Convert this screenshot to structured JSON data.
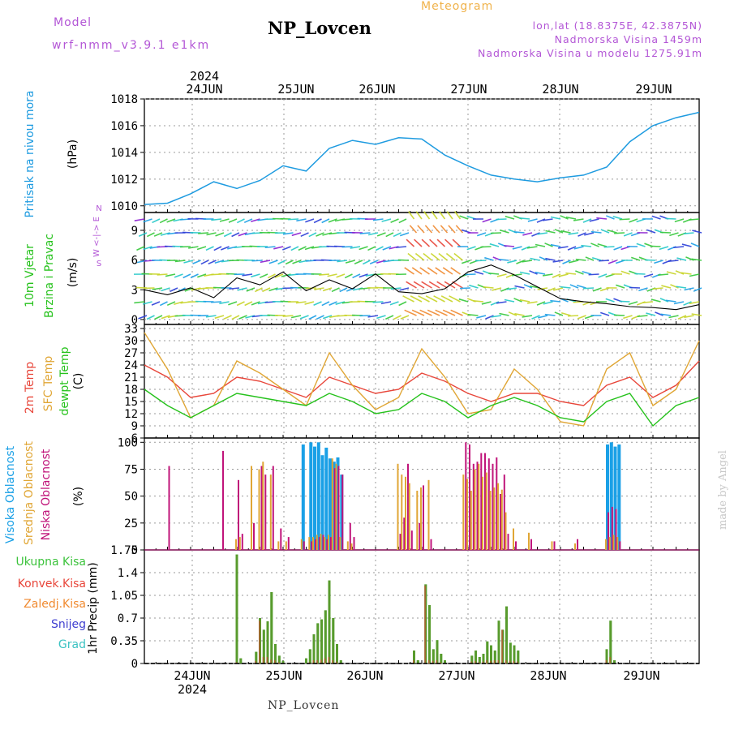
{
  "header": {
    "model_label": "Model",
    "model_version": "wrf-nmm_v3.9.1 e1km",
    "station": "NP_Lovcen",
    "chart_kind": "Meteogram",
    "lonlat": "lon,lat (18.8375E, 42.3875N)",
    "altitude": "Nadmorska Visina 1459m",
    "model_altitude": "Nadmorska Visina u modelu 1275.91m"
  },
  "footer": {
    "station": "NP_Lovcen",
    "credit": "made by Angel"
  },
  "colors": {
    "pressure": "#1e9be0",
    "temp2m": "#e8463a",
    "sfc_temp": "#e0a635",
    "dewpoint": "#26c21c",
    "cloud_high": "#1aa0e6",
    "cloud_mid": "#e0a635",
    "cloud_low": "#c0147a",
    "precip_total": "#3cc33c",
    "precip_conv": "#e8463a",
    "precip_frozen": "#f08a30",
    "snow": "#3f3fd0",
    "hail": "#3cc3c3",
    "wind_dir_legend": "#b356d6",
    "speed_line": "#000000"
  },
  "chart_data": [
    {
      "id": "pressure",
      "type": "line",
      "title_lines": [
        "Pritisak na nivou mora",
        "(hPa)"
      ],
      "ylim": [
        1009.5,
        1018
      ],
      "yticks": [
        1010,
        1012,
        1014,
        1016,
        1018
      ],
      "top_year": "2024",
      "top_dates": [
        "24JUN",
        "25JUN",
        "26JUN",
        "27JUN",
        "28JUN",
        "29JUN"
      ],
      "x": [
        0,
        6,
        12,
        18,
        24,
        30,
        36,
        42,
        48,
        54,
        60,
        66,
        72,
        78,
        84,
        90,
        96,
        102,
        108,
        114,
        120,
        126,
        132,
        138,
        144
      ],
      "series": [
        {
          "values": [
            1010.1,
            1010.2,
            1010.9,
            1011.8,
            1011.3,
            1011.9,
            1013.0,
            1012.6,
            1014.3,
            1014.9,
            1014.6,
            1015.1,
            1015.0,
            1013.8,
            1013.0,
            1012.3,
            1012.0,
            1011.8,
            1012.1,
            1012.3,
            1012.9,
            1014.8,
            1016.0,
            1016.6,
            1017.0
          ]
        }
      ]
    },
    {
      "id": "wind",
      "type": "line",
      "title_lines": [
        "10m Vjetar",
        "Brzina i Pravac",
        "(m/s)"
      ],
      "legend_glyph": [
        "N",
        "W <-|-> E",
        "S"
      ],
      "ylim": [
        -0.5,
        10.8
      ],
      "yticks": [
        0,
        3,
        6,
        9
      ],
      "x": [
        0,
        6,
        12,
        18,
        24,
        30,
        36,
        42,
        48,
        54,
        60,
        66,
        72,
        78,
        84,
        90,
        96,
        102,
        108,
        114,
        120,
        126,
        132,
        138,
        144
      ],
      "series": [
        {
          "name": "speed",
          "values": [
            3.0,
            2.5,
            3.2,
            2.2,
            4.2,
            3.5,
            4.8,
            2.9,
            4.0,
            3.1,
            4.6,
            2.8,
            2.6,
            3.1,
            4.8,
            5.5,
            4.5,
            3.3,
            2.1,
            1.8,
            1.6,
            1.3,
            1.2,
            1.0,
            1.5
          ]
        }
      ]
    },
    {
      "id": "temperature",
      "type": "line",
      "title_lines": [
        "2m Temp",
        "SFC Temp",
        "dewpt Temp",
        "(C)"
      ],
      "ylim": [
        6,
        34
      ],
      "yticks": [
        6,
        9,
        12,
        15,
        18,
        21,
        24,
        27,
        30,
        33
      ],
      "x": [
        0,
        6,
        12,
        18,
        24,
        30,
        36,
        42,
        48,
        54,
        60,
        66,
        72,
        78,
        84,
        90,
        96,
        102,
        108,
        114,
        120,
        126,
        132,
        138,
        144
      ],
      "series": [
        {
          "name": "2m Temp",
          "values": [
            24,
            21,
            16,
            17,
            21,
            20,
            18,
            16,
            21,
            19,
            17,
            18,
            22,
            20,
            17,
            15,
            17,
            17,
            15,
            14,
            19,
            21,
            16,
            19,
            25
          ]
        },
        {
          "name": "SFC Temp",
          "values": [
            32,
            23,
            11,
            14,
            25,
            22,
            18,
            14,
            27,
            19,
            13,
            16,
            28,
            21,
            12,
            13,
            23,
            18,
            10,
            9,
            23,
            27,
            14,
            18,
            30
          ]
        },
        {
          "name": "dewpt Temp",
          "values": [
            18,
            14,
            11,
            14,
            17,
            16,
            15,
            14,
            17,
            15,
            12,
            13,
            17,
            15,
            11,
            14,
            16,
            14,
            11,
            10,
            15,
            17,
            9,
            14,
            16
          ]
        }
      ]
    },
    {
      "id": "clouds",
      "type": "bar",
      "title_lines": [
        "Visoka Oblacnost",
        "Srednja Oblacnost",
        "Niska Oblacnost",
        "(%)"
      ],
      "ylim": [
        0,
        104
      ],
      "yticks": [
        0,
        25,
        50,
        75,
        100
      ],
      "x": [
        6,
        20,
        24,
        25,
        28,
        30,
        31,
        33,
        35,
        37,
        41,
        43,
        44,
        45,
        46,
        47,
        48,
        49,
        50,
        51,
        53,
        54,
        66,
        67,
        68,
        69,
        71,
        72,
        74,
        83,
        84,
        85,
        86,
        87,
        88,
        89,
        90,
        91,
        92,
        93,
        94,
        96,
        100,
        106,
        112,
        120,
        121,
        122,
        123
      ],
      "series": [
        {
          "name": "Visoka Oblacnost",
          "values": [
            0,
            0,
            0,
            0,
            0,
            0,
            0,
            0,
            0,
            0,
            98,
            100,
            96,
            100,
            88,
            95,
            85,
            82,
            86,
            70,
            0,
            0,
            0,
            0,
            0,
            0,
            0,
            0,
            0,
            0,
            0,
            0,
            0,
            0,
            0,
            0,
            0,
            0,
            0,
            0,
            0,
            0,
            0,
            0,
            0,
            98,
            100,
            96,
            98
          ]
        },
        {
          "name": "Srednja Oblacnost",
          "values": [
            0,
            0,
            10,
            12,
            78,
            75,
            82,
            70,
            8,
            8,
            10,
            12,
            12,
            14,
            15,
            12,
            14,
            85,
            80,
            12,
            8,
            6,
            80,
            70,
            68,
            62,
            55,
            58,
            65,
            70,
            66,
            55,
            75,
            80,
            68,
            72,
            55,
            58,
            62,
            56,
            35,
            20,
            16,
            8,
            6,
            10,
            12,
            14,
            12
          ]
        },
        {
          "name": "Niska Oblacnost",
          "values": [
            78,
            92,
            65,
            15,
            25,
            78,
            70,
            78,
            20,
            12,
            8,
            8,
            10,
            12,
            14,
            10,
            12,
            76,
            78,
            70,
            25,
            12,
            15,
            30,
            80,
            18,
            25,
            60,
            10,
            100,
            98,
            80,
            82,
            90,
            90,
            85,
            80,
            86,
            52,
            70,
            15,
            8,
            10,
            8,
            10,
            35,
            40,
            38,
            8
          ]
        }
      ]
    },
    {
      "id": "precip",
      "type": "bar",
      "title_lines": [
        "1hr Precip (mm)"
      ],
      "legend": [
        "Ukupna Kisa",
        "Konvek.Kisa",
        "Zaledj.Kisa",
        "Snijeg",
        "Grad"
      ],
      "ylim": [
        0,
        1.75
      ],
      "yticks": [
        0,
        0.35,
        0.7,
        1.05,
        1.4,
        1.75
      ],
      "ytick_labels": [
        "0",
        "0.35",
        "0.7",
        "1.05",
        "1.4",
        "1.75"
      ],
      "bottom_dates": [
        "24JUN",
        "25JUN",
        "26JUN",
        "27JUN",
        "28JUN",
        "29JUN"
      ],
      "bottom_year": "2024",
      "x": [
        24,
        25,
        29,
        30,
        31,
        32,
        33,
        34,
        35,
        36,
        42,
        43,
        44,
        45,
        46,
        47,
        48,
        49,
        50,
        51,
        70,
        71,
        73,
        74,
        75,
        76,
        77,
        78,
        85,
        86,
        87,
        88,
        89,
        90,
        91,
        92,
        93,
        94,
        95,
        96,
        97,
        120,
        121,
        122
      ],
      "series": [
        {
          "name": "Ukupna Kisa",
          "values": [
            1.68,
            0.08,
            0.18,
            0.7,
            0.52,
            0.65,
            1.1,
            0.3,
            0.12,
            0.04,
            0.08,
            0.22,
            0.45,
            0.62,
            0.68,
            0.82,
            1.28,
            0.7,
            0.3,
            0.05,
            0.2,
            0.05,
            1.22,
            0.9,
            0.22,
            0.36,
            0.15,
            0.05,
            0.12,
            0.2,
            0.1,
            0.15,
            0.34,
            0.28,
            0.2,
            0.66,
            0.52,
            0.88,
            0.32,
            0.28,
            0.2,
            0.22,
            0.66,
            0.05
          ]
        },
        {
          "name": "Konvek.Kisa",
          "values": [
            0.02,
            0,
            0.04,
            0.66,
            0.1,
            0.1,
            0.06,
            0.05,
            0.02,
            0,
            0,
            0.02,
            0.05,
            0.05,
            0.06,
            0.08,
            0.1,
            0.05,
            0.03,
            0,
            0.05,
            0,
            1.2,
            0.05,
            0.04,
            0.05,
            0.02,
            0,
            0.03,
            0.04,
            0.02,
            0.03,
            0.05,
            0.04,
            0.05,
            0.05,
            0.52,
            0.05,
            0.04,
            0.04,
            0.03,
            0.05,
            0.1,
            0
          ]
        }
      ]
    }
  ]
}
